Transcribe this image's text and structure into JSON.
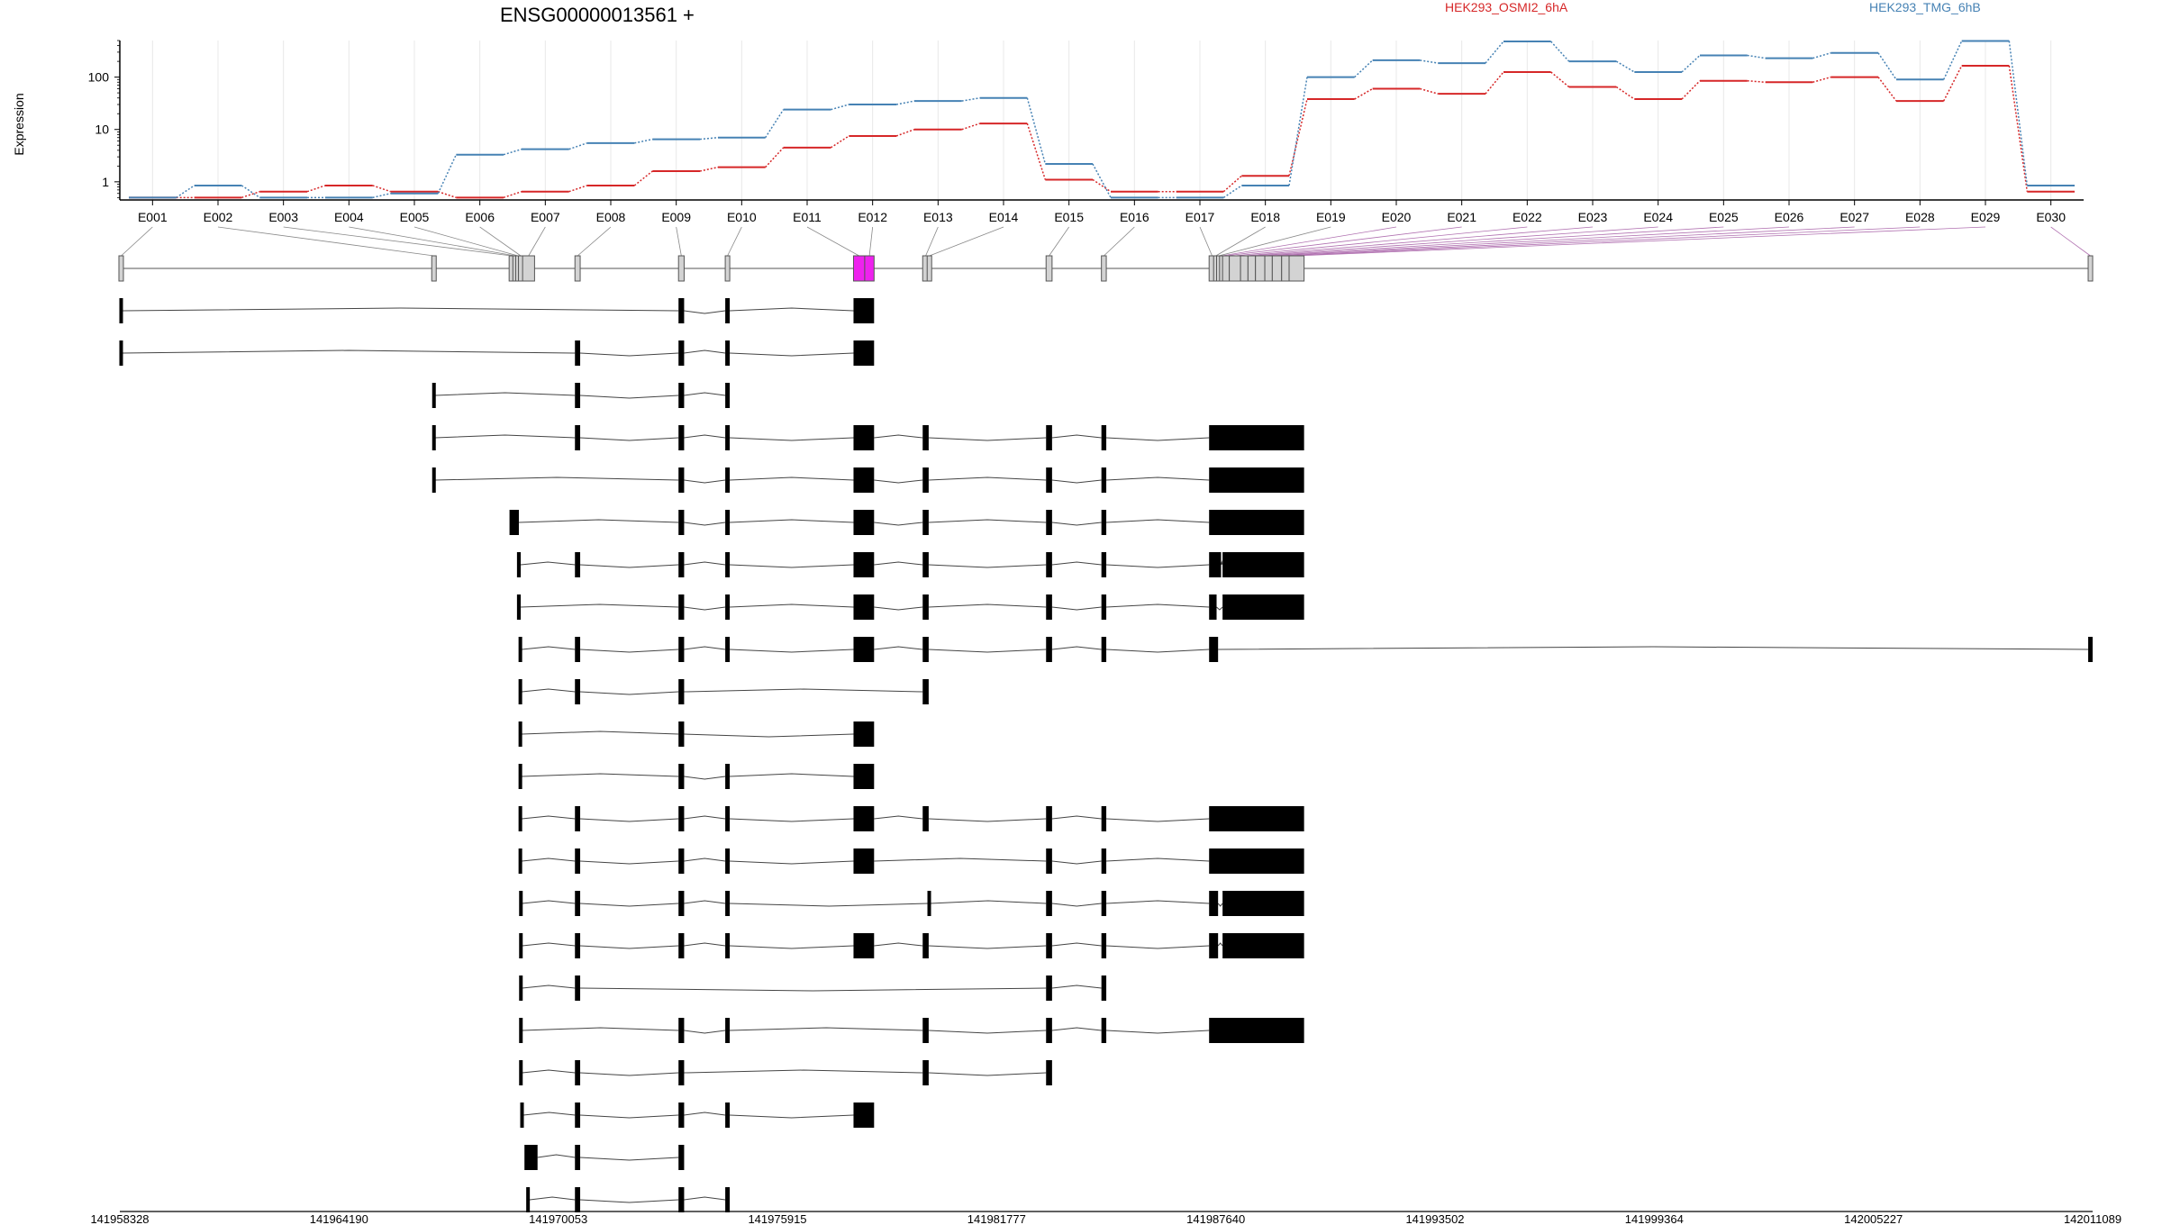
{
  "chart_data": {
    "type": "line",
    "title": "ENSG00000013561 +",
    "ylabel": "Expression",
    "y_scale": "log",
    "yticks": [
      "1",
      "10",
      "100"
    ],
    "ylim": [
      0.45,
      500
    ],
    "categories": [
      "E001",
      "E002",
      "E003",
      "E004",
      "E005",
      "E006",
      "E007",
      "E008",
      "E009",
      "E010",
      "E011",
      "E012",
      "E013",
      "E014",
      "E015",
      "E016",
      "E017",
      "E018",
      "E019",
      "E020",
      "E021",
      "E022",
      "E023",
      "E024",
      "E025",
      "E026",
      "E027",
      "E028",
      "E029",
      "E030"
    ],
    "series": [
      {
        "name": "HEK293_OSMI2_6hA",
        "color": "#d62728",
        "values": [
          0.5,
          0.5,
          0.65,
          0.85,
          0.65,
          0.5,
          0.65,
          0.85,
          1.6,
          1.9,
          4.5,
          7.5,
          10,
          13,
          1.1,
          0.65,
          0.65,
          1.3,
          38,
          60,
          48,
          125,
          65,
          38,
          85,
          80,
          100,
          35,
          165,
          0.65
        ]
      },
      {
        "name": "HEK293_TMG_6hB",
        "color": "#4682b4",
        "values": [
          0.5,
          0.85,
          0.5,
          0.5,
          0.6,
          3.3,
          4.2,
          5.5,
          6.5,
          7,
          24,
          30,
          35,
          40,
          2.2,
          0.5,
          0.5,
          0.85,
          100,
          210,
          185,
          480,
          200,
          125,
          260,
          230,
          290,
          90,
          490,
          0.85
        ]
      }
    ],
    "exons": [
      {
        "id": "E001",
        "start": 141958328,
        "end": 141958400,
        "highlight": false
      },
      {
        "id": "E002",
        "start": 141966700,
        "end": 141966760,
        "highlight": false
      },
      {
        "id": "E003",
        "start": 141968750,
        "end": 141968850,
        "highlight": false
      },
      {
        "id": "E004",
        "start": 141968850,
        "end": 141968950,
        "highlight": false
      },
      {
        "id": "E005",
        "start": 141968950,
        "end": 141969000,
        "highlight": false
      },
      {
        "id": "E006",
        "start": 141969000,
        "end": 141969100,
        "highlight": false
      },
      {
        "id": "E007",
        "start": 141969100,
        "end": 141969420,
        "highlight": false
      },
      {
        "id": "E008",
        "start": 141970500,
        "end": 141970640,
        "highlight": false
      },
      {
        "id": "E009",
        "start": 141973270,
        "end": 141973420,
        "highlight": false
      },
      {
        "id": "E010",
        "start": 141974520,
        "end": 141974640,
        "highlight": false
      },
      {
        "id": "E011",
        "start": 141977950,
        "end": 141978250,
        "highlight": true
      },
      {
        "id": "E012",
        "start": 141978250,
        "end": 141978500,
        "highlight": true
      },
      {
        "id": "E013",
        "start": 141979800,
        "end": 141979960,
        "highlight": false
      },
      {
        "id": "E014",
        "start": 141979960,
        "end": 141980000,
        "highlight": false
      },
      {
        "id": "E015",
        "start": 141983100,
        "end": 141983260,
        "highlight": false
      },
      {
        "id": "E016",
        "start": 141984580,
        "end": 141984710,
        "highlight": false
      },
      {
        "id": "E017",
        "start": 141987460,
        "end": 141987620,
        "highlight": false
      },
      {
        "id": "E018",
        "start": 141987620,
        "end": 141987660,
        "highlight": false
      },
      {
        "id": "E019",
        "start": 141987660,
        "end": 141987780,
        "highlight": false
      },
      {
        "id": "E020",
        "start": 141987780,
        "end": 141987820,
        "highlight": false
      },
      {
        "id": "E021",
        "start": 141987820,
        "end": 141988000,
        "highlight": false
      },
      {
        "id": "E022",
        "start": 141988000,
        "end": 141988300,
        "highlight": false
      },
      {
        "id": "E023",
        "start": 141988300,
        "end": 141988500,
        "highlight": false
      },
      {
        "id": "E024",
        "start": 141988500,
        "end": 141988700,
        "highlight": false
      },
      {
        "id": "E025",
        "start": 141988700,
        "end": 141988950,
        "highlight": false
      },
      {
        "id": "E026",
        "start": 141988950,
        "end": 141989150,
        "highlight": false
      },
      {
        "id": "E027",
        "start": 141989150,
        "end": 141989400,
        "highlight": false
      },
      {
        "id": "E028",
        "start": 141989400,
        "end": 141989600,
        "highlight": false
      },
      {
        "id": "E029",
        "start": 141989600,
        "end": 141990000,
        "highlight": false
      },
      {
        "id": "E030",
        "start": 142010970,
        "end": 142011089,
        "highlight": false
      }
    ],
    "transcripts": [
      [
        [
          141958328,
          141958400
        ],
        [
          141973270,
          141973420
        ],
        [
          141974520,
          141974640
        ],
        [
          141977950,
          141978500
        ]
      ],
      [
        [
          141958328,
          141958400
        ],
        [
          141970500,
          141970640
        ],
        [
          141973270,
          141973420
        ],
        [
          141974520,
          141974640
        ],
        [
          141977950,
          141978500
        ]
      ],
      [
        [
          141966700,
          141966760
        ],
        [
          141970500,
          141970640
        ],
        [
          141973270,
          141973420
        ],
        [
          141974520,
          141974640
        ]
      ],
      [
        [
          141966700,
          141966760
        ],
        [
          141970500,
          141970640
        ],
        [
          141973270,
          141973420
        ],
        [
          141974520,
          141974640
        ],
        [
          141977950,
          141978500
        ],
        [
          141979800,
          141979960
        ],
        [
          141983100,
          141983260
        ],
        [
          141984580,
          141984710
        ],
        [
          141987460,
          141990000
        ]
      ],
      [
        [
          141966700,
          141966760
        ],
        [
          141973270,
          141973420
        ],
        [
          141974520,
          141974640
        ],
        [
          141977950,
          141978500
        ],
        [
          141979800,
          141979960
        ],
        [
          141983100,
          141983260
        ],
        [
          141984580,
          141984710
        ],
        [
          141987460,
          141990000
        ]
      ],
      [
        [
          141968750,
          141969000
        ],
        [
          141973270,
          141973420
        ],
        [
          141974520,
          141974640
        ],
        [
          141977950,
          141978500
        ],
        [
          141979800,
          141979960
        ],
        [
          141983100,
          141983260
        ],
        [
          141984580,
          141984710
        ],
        [
          141987460,
          141990000
        ]
      ],
      [
        [
          141968950,
          141969050
        ],
        [
          141970500,
          141970640
        ],
        [
          141973270,
          141973420
        ],
        [
          141974520,
          141974640
        ],
        [
          141977950,
          141978500
        ],
        [
          141979800,
          141979960
        ],
        [
          141983100,
          141983260
        ],
        [
          141984580,
          141984710
        ],
        [
          141987460,
          141987780
        ],
        [
          141987820,
          141990000
        ]
      ],
      [
        [
          141968950,
          141969050
        ],
        [
          141973270,
          141973420
        ],
        [
          141974520,
          141974640
        ],
        [
          141977950,
          141978500
        ],
        [
          141979800,
          141979960
        ],
        [
          141983100,
          141983260
        ],
        [
          141984580,
          141984710
        ],
        [
          141987460,
          141987660
        ],
        [
          141987820,
          141990000
        ]
      ],
      [
        [
          141969000,
          141969080
        ],
        [
          141970500,
          141970640
        ],
        [
          141973270,
          141973420
        ],
        [
          141974520,
          141974640
        ],
        [
          141977950,
          141978500
        ],
        [
          141979800,
          141979960
        ],
        [
          141983100,
          141983260
        ],
        [
          141984580,
          141984710
        ],
        [
          141987460,
          141987700
        ],
        [
          142010970,
          142011089
        ]
      ],
      [
        [
          141969000,
          141969080
        ],
        [
          141970500,
          141970640
        ],
        [
          141973270,
          141973420
        ],
        [
          141979800,
          141979960
        ]
      ],
      [
        [
          141969000,
          141969080
        ],
        [
          141973270,
          141973420
        ],
        [
          141977950,
          141978500
        ]
      ],
      [
        [
          141969000,
          141969080
        ],
        [
          141973270,
          141973420
        ],
        [
          141974520,
          141974640
        ],
        [
          141977950,
          141978500
        ]
      ],
      [
        [
          141969000,
          141969080
        ],
        [
          141970500,
          141970640
        ],
        [
          141973270,
          141973420
        ],
        [
          141974520,
          141974640
        ],
        [
          141977950,
          141978500
        ],
        [
          141979800,
          141979960
        ],
        [
          141983100,
          141983260
        ],
        [
          141984580,
          141984710
        ],
        [
          141987460,
          141990000
        ]
      ],
      [
        [
          141969000,
          141969080
        ],
        [
          141970500,
          141970640
        ],
        [
          141973270,
          141973420
        ],
        [
          141974520,
          141974640
        ],
        [
          141977950,
          141978500
        ],
        [
          141983100,
          141983260
        ],
        [
          141984580,
          141984710
        ],
        [
          141987460,
          141990000
        ]
      ],
      [
        [
          141969020,
          141969090
        ],
        [
          141970500,
          141970640
        ],
        [
          141973270,
          141973420
        ],
        [
          141974520,
          141974640
        ],
        [
          141979950,
          141980000
        ],
        [
          141983100,
          141983260
        ],
        [
          141984580,
          141984710
        ],
        [
          141987460,
          141987700
        ],
        [
          141987820,
          141990000
        ]
      ],
      [
        [
          141969020,
          141969090
        ],
        [
          141970500,
          141970640
        ],
        [
          141973270,
          141973420
        ],
        [
          141974520,
          141974640
        ],
        [
          141977950,
          141978500
        ],
        [
          141979800,
          141979960
        ],
        [
          141983100,
          141983260
        ],
        [
          141984580,
          141984710
        ],
        [
          141987460,
          141987700
        ],
        [
          141987820,
          141990000
        ]
      ],
      [
        [
          141969020,
          141969090
        ],
        [
          141970500,
          141970640
        ],
        [
          141983100,
          141983260
        ],
        [
          141984580,
          141984710
        ]
      ],
      [
        [
          141969020,
          141969090
        ],
        [
          141973270,
          141973420
        ],
        [
          141974520,
          141974640
        ],
        [
          141979800,
          141979960
        ],
        [
          141983100,
          141983260
        ],
        [
          141984580,
          141984710
        ],
        [
          141987460,
          141990000
        ]
      ],
      [
        [
          141969020,
          141969090
        ],
        [
          141970500,
          141970640
        ],
        [
          141973270,
          141973420
        ],
        [
          141979800,
          141979960
        ],
        [
          141983100,
          141983260
        ]
      ],
      [
        [
          141969050,
          141969120
        ],
        [
          141970500,
          141970640
        ],
        [
          141973270,
          141973420
        ],
        [
          141974520,
          141974640
        ],
        [
          141977950,
          141978500
        ]
      ],
      [
        [
          141969150,
          141969500
        ],
        [
          141970500,
          141970640
        ],
        [
          141973270,
          141973420
        ]
      ],
      [
        [
          141969200,
          141969290
        ],
        [
          141970500,
          141970640
        ],
        [
          141973270,
          141973420
        ],
        [
          141974520,
          141974640
        ]
      ]
    ],
    "coordinate_ticks": [
      "141958328",
      "141964190",
      "141970053",
      "141975915",
      "141981777",
      "141987640",
      "141993502",
      "141999364",
      "142005227",
      "142011089"
    ],
    "genome_range": [
      141958328,
      142011089
    ]
  }
}
